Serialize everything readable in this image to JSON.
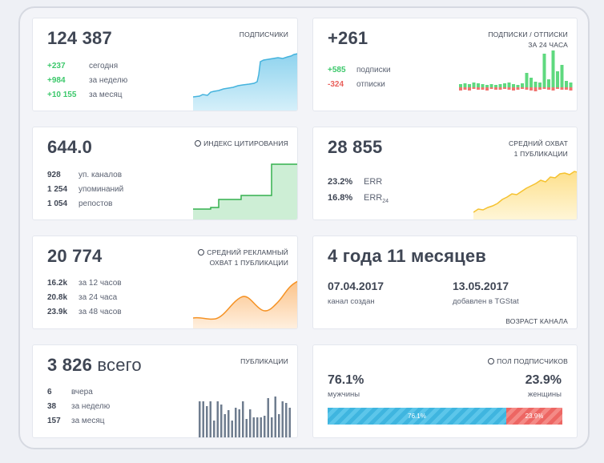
{
  "subscribers": {
    "value": "124 387",
    "label": "ПОДПИСЧИКИ",
    "rows": [
      {
        "value": "+237",
        "text": "сегодня"
      },
      {
        "value": "+984",
        "text": "за неделю"
      },
      {
        "value": "+10 155",
        "text": "за месяц"
      }
    ],
    "color": "#3cc86b"
  },
  "subs_unsubs": {
    "value": "+261",
    "label_line1": "ПОДПИСКИ / ОТПИСКИ",
    "label_line2": "ЗА 24 ЧАСА",
    "rows": [
      {
        "value": "+585",
        "text": "подписки"
      },
      {
        "value": "-324",
        "text": "отписки"
      }
    ]
  },
  "citation": {
    "value": "644.0",
    "label": "ИНДЕКС ЦИТИРОВАНИЯ",
    "icon": "info-icon",
    "rows": [
      {
        "value": "928",
        "text": "уп. каналов"
      },
      {
        "value": "1 254",
        "text": "упоминаний"
      },
      {
        "value": "1 054",
        "text": "репостов"
      }
    ]
  },
  "reach": {
    "value": "28 855",
    "label_line1": "СРЕДНИЙ ОХВАТ",
    "label_line2": "1 ПУБЛИКАЦИИ",
    "rows": [
      {
        "value": "23.2%",
        "text": "ERR",
        "sub": ""
      },
      {
        "value": "16.8%",
        "text": "ERR",
        "sub": "24"
      }
    ]
  },
  "ad_reach": {
    "value": "20 774",
    "label_line1": "СРЕДНИЙ РЕКЛАМНЫЙ",
    "label_line2": "ОХВАТ 1 ПУБЛИКАЦИИ",
    "icon": "info-icon",
    "rows": [
      {
        "value": "16.2k",
        "text": "за 12 часов"
      },
      {
        "value": "20.8k",
        "text": "за 24 часа"
      },
      {
        "value": "23.9k",
        "text": "за 48 часов"
      }
    ]
  },
  "age": {
    "value": "4 года 11 месяцев",
    "created_date": "07.04.2017",
    "created_label": "канал создан",
    "added_date": "13.05.2017",
    "added_label": "добавлен в TGStat",
    "label": "ВОЗРАСТ КАНАЛА"
  },
  "posts": {
    "value": "3 826",
    "value_suffix": "всего",
    "label": "ПУБЛИКАЦИИ",
    "rows": [
      {
        "value": "6",
        "text": "вчера"
      },
      {
        "value": "38",
        "text": "за неделю"
      },
      {
        "value": "157",
        "text": "за месяц"
      }
    ]
  },
  "gender": {
    "label": "ПОЛ ПОДПИСЧИКОВ",
    "icon": "info-icon",
    "male_pct": "76.1%",
    "male_label": "мужчины",
    "female_pct": "23.9%",
    "female_label": "женщины",
    "male_fraction": 0.761,
    "female_fraction": 0.239,
    "male_color": "#3fb5df",
    "female_color": "#ed6663"
  },
  "colors": {
    "green": "#3cc86b",
    "red": "#e9605b",
    "blue_line": "#45b3dd",
    "green_line": "#35b04e",
    "yellow_line": "#f5c230",
    "orange_line": "#f59224",
    "bars": "#6f7d8f"
  }
}
